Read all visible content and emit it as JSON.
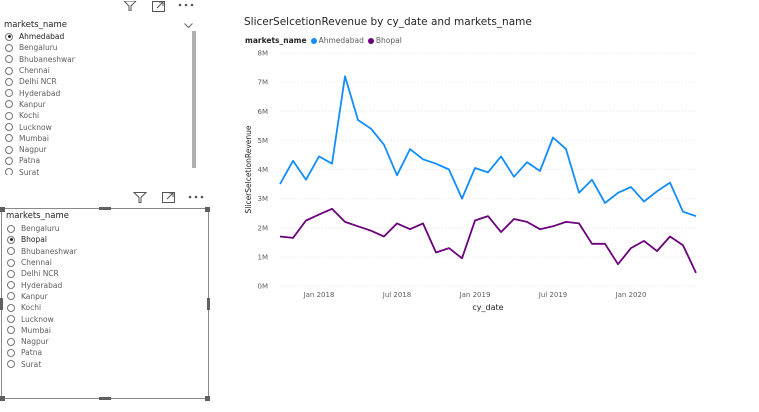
{
  "slicer1": {
    "title": "markets_name",
    "items": [
      "Ahmedabad",
      "Bengaluru",
      "Bhubaneshwar",
      "Chennai",
      "Delhi NCR",
      "Hyderabad",
      "Kanpur",
      "Kochi",
      "Lucknow",
      "Mumbai",
      "Nagpur",
      "Patna",
      "Surat"
    ],
    "selected": "Ahmedabad",
    "header_icons": [
      "filter-icon",
      "focus-mode-icon",
      "more-options-icon"
    ]
  },
  "slicer2": {
    "title": "markets_name",
    "items": [
      "Bengaluru",
      "Bhopal",
      "Bhubaneshwar",
      "Chennai",
      "Delhi NCR",
      "Hyderabad",
      "Kanpur",
      "Kochi",
      "Lucknow",
      "Mumbai",
      "Nagpur",
      "Patna",
      "Surat"
    ],
    "selected": "Bhopal",
    "header_icons": [
      "filter-icon",
      "focus-mode-icon",
      "more-options-icon"
    ]
  },
  "chart_data": {
    "type": "line",
    "title": "SlicerSelcetionRevenue by cy_date and markets_name",
    "xlabel": "cy_date",
    "ylabel": "SlicerSelcetionRevenue",
    "legend_title": "markets_name",
    "legend_position": "top-left",
    "ylim": [
      0,
      8000000
    ],
    "y_ticks": [
      {
        "value": 0,
        "label": "0M"
      },
      {
        "value": 1000000,
        "label": "1M"
      },
      {
        "value": 2000000,
        "label": "2M"
      },
      {
        "value": 3000000,
        "label": "3M"
      },
      {
        "value": 4000000,
        "label": "4M"
      },
      {
        "value": 5000000,
        "label": "5M"
      },
      {
        "value": 6000000,
        "label": "6M"
      },
      {
        "value": 7000000,
        "label": "7M"
      },
      {
        "value": 8000000,
        "label": "8M"
      }
    ],
    "x": [
      "2017-10",
      "2017-11",
      "2017-12",
      "2018-01",
      "2018-02",
      "2018-03",
      "2018-04",
      "2018-05",
      "2018-06",
      "2018-07",
      "2018-08",
      "2018-09",
      "2018-10",
      "2018-11",
      "2018-12",
      "2019-01",
      "2019-02",
      "2019-03",
      "2019-04",
      "2019-05",
      "2019-06",
      "2019-07",
      "2019-08",
      "2019-09",
      "2019-10",
      "2019-11",
      "2019-12",
      "2020-01",
      "2020-02",
      "2020-03",
      "2020-04",
      "2020-05",
      "2020-06"
    ],
    "x_ticks": [
      {
        "value": "2018-01",
        "label": "Jan 2018"
      },
      {
        "value": "2018-07",
        "label": "Jul 2018"
      },
      {
        "value": "2019-01",
        "label": "Jan 2019"
      },
      {
        "value": "2019-07",
        "label": "Jul 2019"
      },
      {
        "value": "2020-01",
        "label": "Jan 2020"
      }
    ],
    "grid": true,
    "series": [
      {
        "name": "Ahmedabad",
        "color": "#118DFF",
        "values": [
          3500000,
          4300000,
          3650000,
          4450000,
          4200000,
          7200000,
          5700000,
          5400000,
          4850000,
          3800000,
          4700000,
          4350000,
          4200000,
          4000000,
          3000000,
          4050000,
          3900000,
          4450000,
          3750000,
          4250000,
          3950000,
          5100000,
          4700000,
          3200000,
          3650000,
          2850000,
          3200000,
          3400000,
          2900000,
          3250000,
          3550000,
          2550000,
          2400000
        ]
      },
      {
        "name": "Bhopal",
        "color": "#6B007B",
        "values": [
          1700000,
          1650000,
          2250000,
          2450000,
          2650000,
          2200000,
          2050000,
          1900000,
          1700000,
          2150000,
          1950000,
          2150000,
          1150000,
          1300000,
          950000,
          2250000,
          2400000,
          1850000,
          2300000,
          2200000,
          1950000,
          2050000,
          2200000,
          2150000,
          1450000,
          1450000,
          750000,
          1300000,
          1550000,
          1200000,
          1700000,
          1400000,
          450000
        ]
      }
    ]
  }
}
